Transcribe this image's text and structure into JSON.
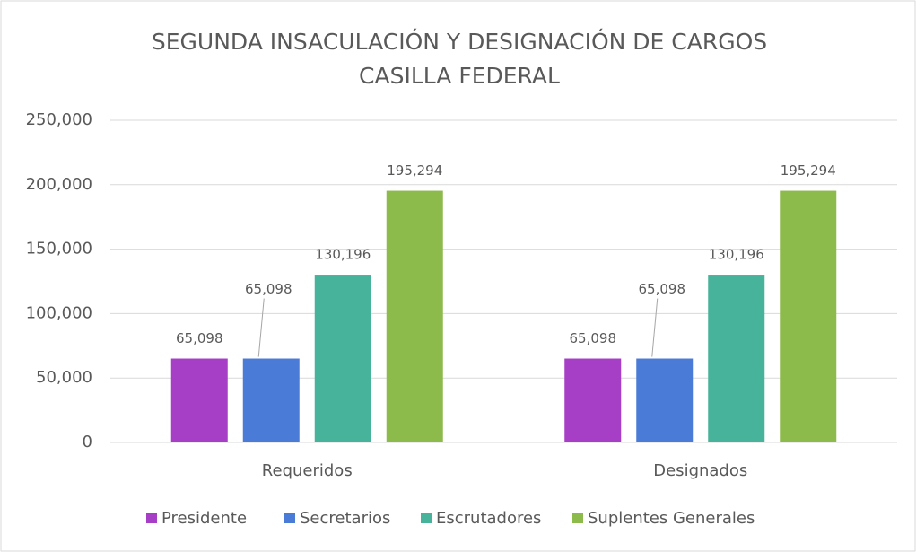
{
  "chart_data": {
    "type": "bar",
    "title": [
      "SEGUNDA INSACULACIÓN Y DESIGNACIÓN DE CARGOS",
      "CASILLA FEDERAL"
    ],
    "categories": [
      "Requeridos",
      "Designados"
    ],
    "series": [
      {
        "name": "Presidente",
        "color": "#a63fc6",
        "values": [
          65098,
          65098
        ],
        "value_labels": [
          "65,098",
          "65,098"
        ]
      },
      {
        "name": "Secretarios",
        "color": "#4a7bd6",
        "values": [
          65098,
          65098
        ],
        "value_labels": [
          "65,098",
          "65,098"
        ]
      },
      {
        "name": "Escrutadores",
        "color": "#47b39a",
        "values": [
          130196,
          130196
        ],
        "value_labels": [
          "130,196",
          "130,196"
        ]
      },
      {
        "name": "Suplentes Generales",
        "color": "#8dbb4b",
        "values": [
          195294,
          195294
        ],
        "value_labels": [
          "195,294",
          "195,294"
        ]
      }
    ],
    "ylim": [
      0,
      250000
    ],
    "yticks": [
      0,
      {
        "value": 50000,
        "label": "50,000"
      },
      {
        "value": 100000,
        "label": "100,000"
      },
      {
        "value": 150000,
        "label": "150,000"
      },
      {
        "value": 200000,
        "label": "200,000"
      },
      {
        "value": 250000,
        "label": "250,000"
      }
    ],
    "grid": true,
    "legend": "bottom"
  }
}
